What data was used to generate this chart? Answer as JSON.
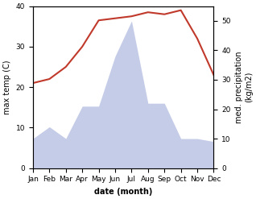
{
  "months": [
    "Jan",
    "Feb",
    "Mar",
    "Apr",
    "May",
    "Jun",
    "Jul",
    "Aug",
    "Sep",
    "Oct",
    "Nov",
    "Dec"
  ],
  "month_positions": [
    1,
    2,
    3,
    4,
    5,
    6,
    7,
    8,
    9,
    10,
    11,
    12
  ],
  "temperature": [
    21,
    22,
    25,
    30,
    36.5,
    37,
    37.5,
    38.5,
    38,
    39,
    32,
    23
  ],
  "precipitation": [
    10,
    14,
    10,
    21,
    21,
    38,
    50,
    22,
    22,
    10,
    10,
    9
  ],
  "temp_color": "#c0392b",
  "precip_fill_color": "#c5cce8",
  "temp_ylim": [
    0,
    40
  ],
  "precip_ylim": [
    0,
    55
  ],
  "temp_yticks": [
    0,
    10,
    20,
    30,
    40
  ],
  "precip_yticks": [
    0,
    10,
    20,
    30,
    40,
    50
  ],
  "xlabel": "date (month)",
  "ylabel_left": "max temp (C)",
  "ylabel_right": "med. precipitation\n(kg/m2)",
  "background_color": "#ffffff",
  "xlabel_fontsize": 7,
  "ylabel_fontsize": 7,
  "tick_fontsize": 6.5,
  "line_width": 1.5
}
